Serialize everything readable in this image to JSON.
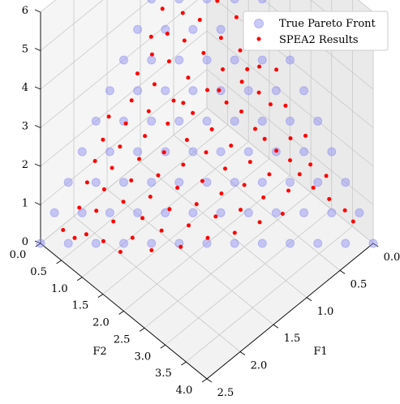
{
  "chart_data": {
    "type": "scatter",
    "projection": "3d",
    "xlabel": "F1",
    "ylabel": "F2",
    "zlabel": "",
    "xlim": [
      0,
      2.5
    ],
    "ylim": [
      0,
      4.0
    ],
    "zlim": [
      0,
      6
    ],
    "xticks": [
      "0.0",
      "0.5",
      "1.0",
      "1.5",
      "2.0",
      "2.5"
    ],
    "yticks": [
      "0.0",
      "0.5",
      "1.0",
      "1.5",
      "2.0",
      "2.5",
      "3.0",
      "3.5",
      "4.0"
    ],
    "zticks": [
      "0",
      "1",
      "2",
      "3",
      "4",
      "5",
      "6"
    ],
    "grid": true,
    "legend_position": "upper-right",
    "series": [
      {
        "name": "True Pareto Front",
        "color": "#8c8cf2",
        "marker": "large translucent circle",
        "surface": "f1/2.5 + f2/4.0 + f3/6.0 = 1 (triangular plane, lattice step 1/12)"
      },
      {
        "name": "SPEA2 Results",
        "color": "#ff0000",
        "marker": "small solid dot",
        "points": [
          [
            0.02,
            3.55,
            0.2
          ],
          [
            0.05,
            3.4,
            0.4
          ],
          [
            0.1,
            3.1,
            0.5
          ],
          [
            0.05,
            2.95,
            0.9
          ],
          [
            0.15,
            2.8,
            0.6
          ],
          [
            0.1,
            2.65,
            1.0
          ],
          [
            0.2,
            2.55,
            0.8
          ],
          [
            0.05,
            2.45,
            1.5
          ],
          [
            0.25,
            2.4,
            1.1
          ],
          [
            0.15,
            2.25,
            1.4
          ],
          [
            0.3,
            2.15,
            1.2
          ],
          [
            0.1,
            2.05,
            2.0
          ],
          [
            0.35,
            1.95,
            1.4
          ],
          [
            0.2,
            1.85,
            2.0
          ],
          [
            0.4,
            1.8,
            1.6
          ],
          [
            0.05,
            1.75,
            2.6
          ],
          [
            0.25,
            1.65,
            2.2
          ],
          [
            0.45,
            1.55,
            1.9
          ],
          [
            0.15,
            1.5,
            2.6
          ],
          [
            0.35,
            1.4,
            2.4
          ],
          [
            0.55,
            1.35,
            2.1
          ],
          [
            0.05,
            1.3,
            3.2
          ],
          [
            0.25,
            1.2,
            2.9
          ],
          [
            0.45,
            1.1,
            2.6
          ],
          [
            0.65,
            1.05,
            2.3
          ],
          [
            0.15,
            0.95,
            3.4
          ],
          [
            0.35,
            0.9,
            3.1
          ],
          [
            0.55,
            0.8,
            2.9
          ],
          [
            0.75,
            0.75,
            2.5
          ],
          [
            0.05,
            0.7,
            4.0
          ],
          [
            0.25,
            0.65,
            3.7
          ],
          [
            0.45,
            0.55,
            3.4
          ],
          [
            0.65,
            0.5,
            3.1
          ],
          [
            0.85,
            0.45,
            2.8
          ],
          [
            0.15,
            0.4,
            4.1
          ],
          [
            0.35,
            0.35,
            3.8
          ],
          [
            0.55,
            0.3,
            3.5
          ],
          [
            0.75,
            0.25,
            3.2
          ],
          [
            0.95,
            0.2,
            2.9
          ],
          [
            0.1,
            0.15,
            4.5
          ],
          [
            0.3,
            0.1,
            4.2
          ],
          [
            0.5,
            0.08,
            3.9
          ],
          [
            0.7,
            0.05,
            3.6
          ],
          [
            0.9,
            0.1,
            3.2
          ],
          [
            0.4,
            2.6,
            0.7
          ],
          [
            0.5,
            2.3,
            1.0
          ],
          [
            0.6,
            2.0,
            1.2
          ],
          [
            0.7,
            1.7,
            1.5
          ],
          [
            0.8,
            1.4,
            1.8
          ],
          [
            0.9,
            1.1,
            2.1
          ],
          [
            1.0,
            0.8,
            2.3
          ],
          [
            1.1,
            0.5,
            2.6
          ],
          [
            1.2,
            0.25,
            2.8
          ],
          [
            0.55,
            2.7,
            0.4
          ],
          [
            0.65,
            2.4,
            0.7
          ],
          [
            0.75,
            2.1,
            0.9
          ],
          [
            0.85,
            1.8,
            1.2
          ],
          [
            0.95,
            1.5,
            1.5
          ],
          [
            1.05,
            1.2,
            1.7
          ],
          [
            1.15,
            0.9,
            2.0
          ],
          [
            1.25,
            0.6,
            2.2
          ],
          [
            1.35,
            0.35,
            2.4
          ],
          [
            0.8,
            2.55,
            0.4
          ],
          [
            0.9,
            2.25,
            0.6
          ],
          [
            1.0,
            1.95,
            0.9
          ],
          [
            1.1,
            1.65,
            1.1
          ],
          [
            1.2,
            1.35,
            1.4
          ],
          [
            1.3,
            1.05,
            1.6
          ],
          [
            1.4,
            0.75,
            1.9
          ],
          [
            1.5,
            0.45,
            2.1
          ],
          [
            1.6,
            0.2,
            2.2
          ],
          [
            1.05,
            2.35,
            0.3
          ],
          [
            1.15,
            2.05,
            0.6
          ],
          [
            1.25,
            1.75,
            0.8
          ],
          [
            1.35,
            1.45,
            1.1
          ],
          [
            1.45,
            1.15,
            1.3
          ],
          [
            1.55,
            0.85,
            1.6
          ],
          [
            1.65,
            0.55,
            1.8
          ],
          [
            1.75,
            0.3,
            1.9
          ],
          [
            1.3,
            2.1,
            0.3
          ],
          [
            1.4,
            1.8,
            0.5
          ],
          [
            1.5,
            1.5,
            0.8
          ],
          [
            1.6,
            1.2,
            1.0
          ],
          [
            1.7,
            0.9,
            1.3
          ],
          [
            1.8,
            0.6,
            1.5
          ],
          [
            1.9,
            0.35,
            1.6
          ],
          [
            1.55,
            1.85,
            0.2
          ],
          [
            1.65,
            1.55,
            0.5
          ],
          [
            1.75,
            1.25,
            0.7
          ],
          [
            1.85,
            0.95,
            1.0
          ],
          [
            1.95,
            0.65,
            1.2
          ],
          [
            2.05,
            0.4,
            1.3
          ],
          [
            1.8,
            1.55,
            0.2
          ],
          [
            1.9,
            1.25,
            0.4
          ],
          [
            2.0,
            0.95,
            0.7
          ],
          [
            2.1,
            0.7,
            0.9
          ],
          [
            2.2,
            0.45,
            0.9
          ],
          [
            2.05,
            1.2,
            0.2
          ],
          [
            2.15,
            0.95,
            0.4
          ],
          [
            2.25,
            0.7,
            0.5
          ],
          [
            2.3,
            0.5,
            0.3
          ],
          [
            2.35,
            0.3,
            0.4
          ],
          [
            0.3,
            1.45,
            2.7
          ],
          [
            0.6,
            1.25,
            2.4
          ],
          [
            0.95,
            0.95,
            2.3
          ]
        ]
      }
    ]
  }
}
